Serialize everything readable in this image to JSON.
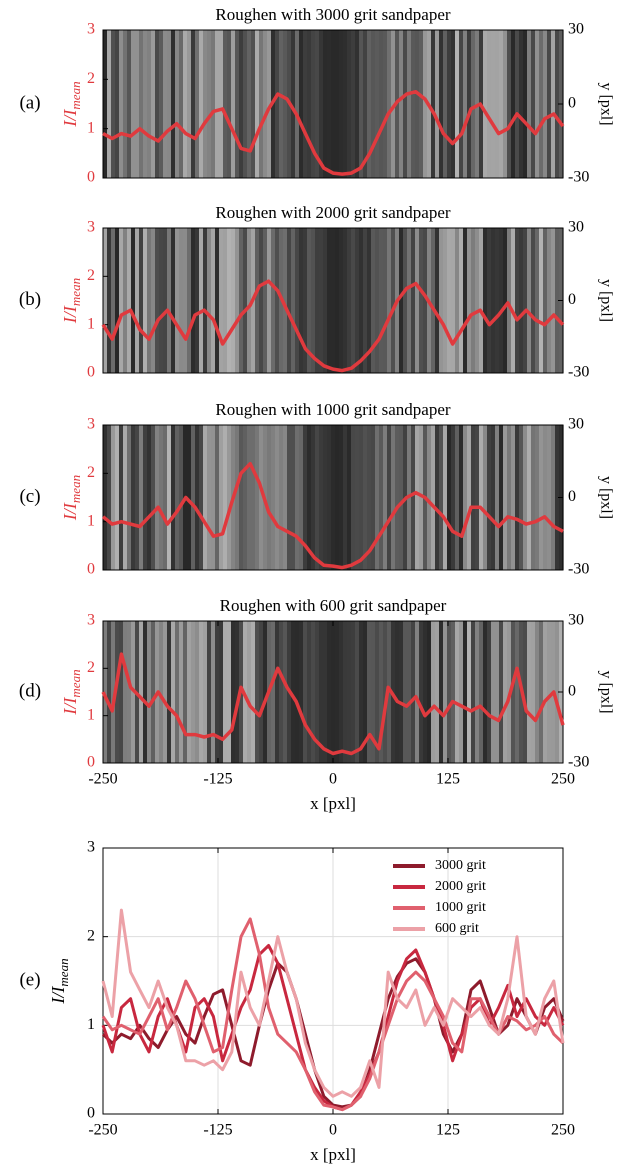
{
  "chart_data": [
    {
      "type": "line",
      "panel_label": "(a)",
      "title": "Roughen with 3000 grit sandpaper",
      "ylabel": "I/I",
      "ylabel_sub": "mean",
      "y2label": "y [pxl]",
      "xlim": [
        -250,
        250
      ],
      "ylim": [
        0,
        3
      ],
      "yticks": [
        0,
        1,
        2,
        3
      ],
      "y2lim": [
        -30,
        30
      ],
      "y2ticks": [
        -30,
        0,
        30
      ],
      "color": "#e03a3e",
      "x": [
        -250,
        -240,
        -230,
        -220,
        -210,
        -200,
        -190,
        -180,
        -170,
        -160,
        -150,
        -140,
        -130,
        -120,
        -110,
        -100,
        -90,
        -80,
        -70,
        -60,
        -50,
        -40,
        -30,
        -20,
        -10,
        0,
        10,
        20,
        30,
        40,
        50,
        60,
        70,
        80,
        90,
        100,
        110,
        120,
        130,
        140,
        150,
        160,
        170,
        180,
        190,
        200,
        210,
        220,
        230,
        240,
        250
      ],
      "values": [
        0.9,
        0.8,
        0.9,
        0.85,
        1.0,
        0.85,
        0.75,
        0.95,
        1.1,
        0.9,
        0.8,
        1.1,
        1.35,
        1.4,
        1.0,
        0.6,
        0.55,
        1.0,
        1.4,
        1.7,
        1.6,
        1.3,
        0.9,
        0.5,
        0.2,
        0.1,
        0.08,
        0.1,
        0.2,
        0.5,
        0.9,
        1.3,
        1.55,
        1.7,
        1.75,
        1.6,
        1.3,
        0.9,
        0.7,
        0.9,
        1.4,
        1.5,
        1.2,
        0.9,
        1.0,
        1.3,
        1.1,
        0.9,
        1.2,
        1.3,
        1.05
      ]
    },
    {
      "type": "line",
      "panel_label": "(b)",
      "title": "Roughen with 2000 grit sandpaper",
      "ylabel": "I/I",
      "ylabel_sub": "mean",
      "y2label": "y [pxl]",
      "xlim": [
        -250,
        250
      ],
      "ylim": [
        0,
        3
      ],
      "yticks": [
        0,
        1,
        2,
        3
      ],
      "y2lim": [
        -30,
        30
      ],
      "y2ticks": [
        -30,
        0,
        30
      ],
      "color": "#e03a3e",
      "x": [
        -250,
        -240,
        -230,
        -220,
        -210,
        -200,
        -190,
        -180,
        -170,
        -160,
        -150,
        -140,
        -130,
        -120,
        -110,
        -100,
        -90,
        -80,
        -70,
        -60,
        -50,
        -40,
        -30,
        -20,
        -10,
        0,
        10,
        20,
        30,
        40,
        50,
        60,
        70,
        80,
        90,
        100,
        110,
        120,
        130,
        140,
        150,
        160,
        170,
        180,
        190,
        200,
        210,
        220,
        230,
        240,
        250
      ],
      "values": [
        1.0,
        0.7,
        1.2,
        1.3,
        0.9,
        0.7,
        1.1,
        1.3,
        1.0,
        0.7,
        1.2,
        1.3,
        1.1,
        0.6,
        0.9,
        1.2,
        1.4,
        1.8,
        1.9,
        1.7,
        1.3,
        0.9,
        0.5,
        0.3,
        0.15,
        0.08,
        0.05,
        0.1,
        0.25,
        0.45,
        0.7,
        1.1,
        1.5,
        1.75,
        1.85,
        1.6,
        1.3,
        1.0,
        0.6,
        0.9,
        1.2,
        1.3,
        1.0,
        1.2,
        1.45,
        1.1,
        1.3,
        1.1,
        1.0,
        1.2,
        1.0
      ]
    },
    {
      "type": "line",
      "panel_label": "(c)",
      "title": "Roughen with 1000 grit sandpaper",
      "ylabel": "I/I",
      "ylabel_sub": "mean",
      "y2label": "y [pxl]",
      "xlim": [
        -250,
        250
      ],
      "ylim": [
        0,
        3
      ],
      "yticks": [
        0,
        1,
        2,
        3
      ],
      "y2lim": [
        -30,
        30
      ],
      "y2ticks": [
        -30,
        0,
        30
      ],
      "color": "#e03a3e",
      "x": [
        -250,
        -240,
        -230,
        -220,
        -210,
        -200,
        -190,
        -180,
        -170,
        -160,
        -150,
        -140,
        -130,
        -120,
        -110,
        -100,
        -90,
        -80,
        -70,
        -60,
        -50,
        -40,
        -30,
        -20,
        -10,
        0,
        10,
        20,
        30,
        40,
        50,
        60,
        70,
        80,
        90,
        100,
        110,
        120,
        130,
        140,
        150,
        160,
        170,
        180,
        190,
        200,
        210,
        220,
        230,
        240,
        250
      ],
      "values": [
        1.1,
        0.95,
        1.0,
        0.95,
        0.9,
        1.1,
        1.3,
        0.95,
        1.2,
        1.5,
        1.3,
        1.0,
        0.7,
        0.75,
        1.4,
        2.0,
        2.2,
        1.8,
        1.2,
        0.9,
        0.8,
        0.7,
        0.5,
        0.25,
        0.1,
        0.08,
        0.05,
        0.1,
        0.2,
        0.4,
        0.7,
        1.0,
        1.3,
        1.5,
        1.6,
        1.5,
        1.3,
        1.1,
        0.8,
        0.7,
        1.3,
        1.3,
        1.1,
        0.9,
        1.1,
        1.05,
        0.95,
        1.0,
        1.1,
        0.9,
        0.8
      ]
    },
    {
      "type": "line",
      "panel_label": "(d)",
      "title": "Roughen with 600 grit sandpaper",
      "ylabel": "I/I",
      "ylabel_sub": "mean",
      "y2label": "y [pxl]",
      "xlabel": "x [pxl]",
      "xlim": [
        -250,
        250
      ],
      "xticks": [
        -250,
        -125,
        0,
        125,
        250
      ],
      "ylim": [
        0,
        3
      ],
      "yticks": [
        0,
        1,
        2,
        3
      ],
      "y2lim": [
        -30,
        30
      ],
      "y2ticks": [
        -30,
        0,
        30
      ],
      "color": "#e03a3e",
      "x": [
        -250,
        -240,
        -230,
        -220,
        -210,
        -200,
        -190,
        -180,
        -170,
        -160,
        -150,
        -140,
        -130,
        -120,
        -110,
        -100,
        -90,
        -80,
        -70,
        -60,
        -50,
        -40,
        -30,
        -20,
        -10,
        0,
        10,
        20,
        30,
        40,
        50,
        60,
        70,
        80,
        90,
        100,
        110,
        120,
        130,
        140,
        150,
        160,
        170,
        180,
        190,
        200,
        210,
        220,
        230,
        240,
        250
      ],
      "values": [
        1.5,
        1.1,
        2.3,
        1.6,
        1.4,
        1.2,
        1.5,
        1.2,
        1.0,
        0.6,
        0.6,
        0.55,
        0.6,
        0.5,
        0.7,
        1.6,
        1.2,
        1.0,
        1.5,
        2.0,
        1.6,
        1.3,
        0.8,
        0.5,
        0.3,
        0.2,
        0.25,
        0.2,
        0.3,
        0.6,
        0.3,
        1.6,
        1.3,
        1.2,
        1.4,
        1.0,
        1.2,
        1.0,
        1.3,
        1.2,
        1.1,
        1.2,
        1.0,
        0.9,
        1.3,
        2.0,
        1.1,
        0.9,
        1.3,
        1.5,
        0.8
      ]
    },
    {
      "type": "multiline",
      "panel_label": "(e)",
      "ylabel": "I/I",
      "ylabel_sub": "mean",
      "xlabel": "x [pxl]",
      "xlim": [
        -250,
        250
      ],
      "xticks": [
        -250,
        -125,
        0,
        125,
        250
      ],
      "ylim": [
        0,
        3
      ],
      "yticks": [
        0,
        1,
        2,
        3
      ],
      "grid": true,
      "legend": "upper right",
      "x": [
        -250,
        -240,
        -230,
        -220,
        -210,
        -200,
        -190,
        -180,
        -170,
        -160,
        -150,
        -140,
        -130,
        -120,
        -110,
        -100,
        -90,
        -80,
        -70,
        -60,
        -50,
        -40,
        -30,
        -20,
        -10,
        0,
        10,
        20,
        30,
        40,
        50,
        60,
        70,
        80,
        90,
        100,
        110,
        120,
        130,
        140,
        150,
        160,
        170,
        180,
        190,
        200,
        210,
        220,
        230,
        240,
        250
      ],
      "series": [
        {
          "name": "3000 grit",
          "color": "#8e1b2c",
          "values": [
            0.9,
            0.8,
            0.9,
            0.85,
            1.0,
            0.85,
            0.75,
            0.95,
            1.1,
            0.9,
            0.8,
            1.1,
            1.35,
            1.4,
            1.0,
            0.6,
            0.55,
            1.0,
            1.4,
            1.7,
            1.6,
            1.3,
            0.9,
            0.5,
            0.2,
            0.1,
            0.08,
            0.1,
            0.2,
            0.5,
            0.9,
            1.3,
            1.55,
            1.7,
            1.75,
            1.6,
            1.3,
            0.9,
            0.7,
            0.9,
            1.4,
            1.5,
            1.2,
            0.9,
            1.0,
            1.3,
            1.1,
            0.9,
            1.2,
            1.3,
            1.05
          ]
        },
        {
          "name": "2000 grit",
          "color": "#c8283f",
          "values": [
            1.0,
            0.7,
            1.2,
            1.3,
            0.9,
            0.7,
            1.1,
            1.3,
            1.0,
            0.7,
            1.2,
            1.3,
            1.1,
            0.6,
            0.9,
            1.2,
            1.4,
            1.8,
            1.9,
            1.7,
            1.3,
            0.9,
            0.5,
            0.3,
            0.15,
            0.08,
            0.05,
            0.1,
            0.25,
            0.45,
            0.7,
            1.1,
            1.5,
            1.75,
            1.85,
            1.6,
            1.3,
            1.0,
            0.6,
            0.9,
            1.2,
            1.3,
            1.0,
            1.2,
            1.45,
            1.1,
            1.3,
            1.1,
            1.0,
            1.2,
            1.0
          ]
        },
        {
          "name": "1000 grit",
          "color": "#e0606e",
          "values": [
            1.1,
            0.95,
            1.0,
            0.95,
            0.9,
            1.1,
            1.3,
            0.95,
            1.2,
            1.5,
            1.3,
            1.0,
            0.7,
            0.75,
            1.4,
            2.0,
            2.2,
            1.8,
            1.2,
            0.9,
            0.8,
            0.7,
            0.5,
            0.25,
            0.1,
            0.08,
            0.05,
            0.1,
            0.2,
            0.4,
            0.7,
            1.0,
            1.3,
            1.5,
            1.6,
            1.5,
            1.3,
            1.1,
            0.8,
            0.7,
            1.3,
            1.3,
            1.1,
            0.9,
            1.1,
            1.05,
            0.95,
            1.0,
            1.1,
            0.9,
            0.8
          ]
        },
        {
          "name": "600 grit",
          "color": "#eca1a7",
          "values": [
            1.5,
            1.1,
            2.3,
            1.6,
            1.4,
            1.2,
            1.5,
            1.2,
            1.0,
            0.6,
            0.6,
            0.55,
            0.6,
            0.5,
            0.7,
            1.6,
            1.2,
            1.0,
            1.5,
            2.0,
            1.6,
            1.3,
            0.8,
            0.5,
            0.3,
            0.2,
            0.25,
            0.2,
            0.3,
            0.6,
            0.3,
            1.6,
            1.3,
            1.2,
            1.4,
            1.0,
            1.2,
            1.0,
            1.3,
            1.2,
            1.1,
            1.2,
            1.0,
            0.9,
            1.3,
            2.0,
            1.1,
            0.9,
            1.3,
            1.5,
            0.8
          ]
        }
      ]
    }
  ]
}
